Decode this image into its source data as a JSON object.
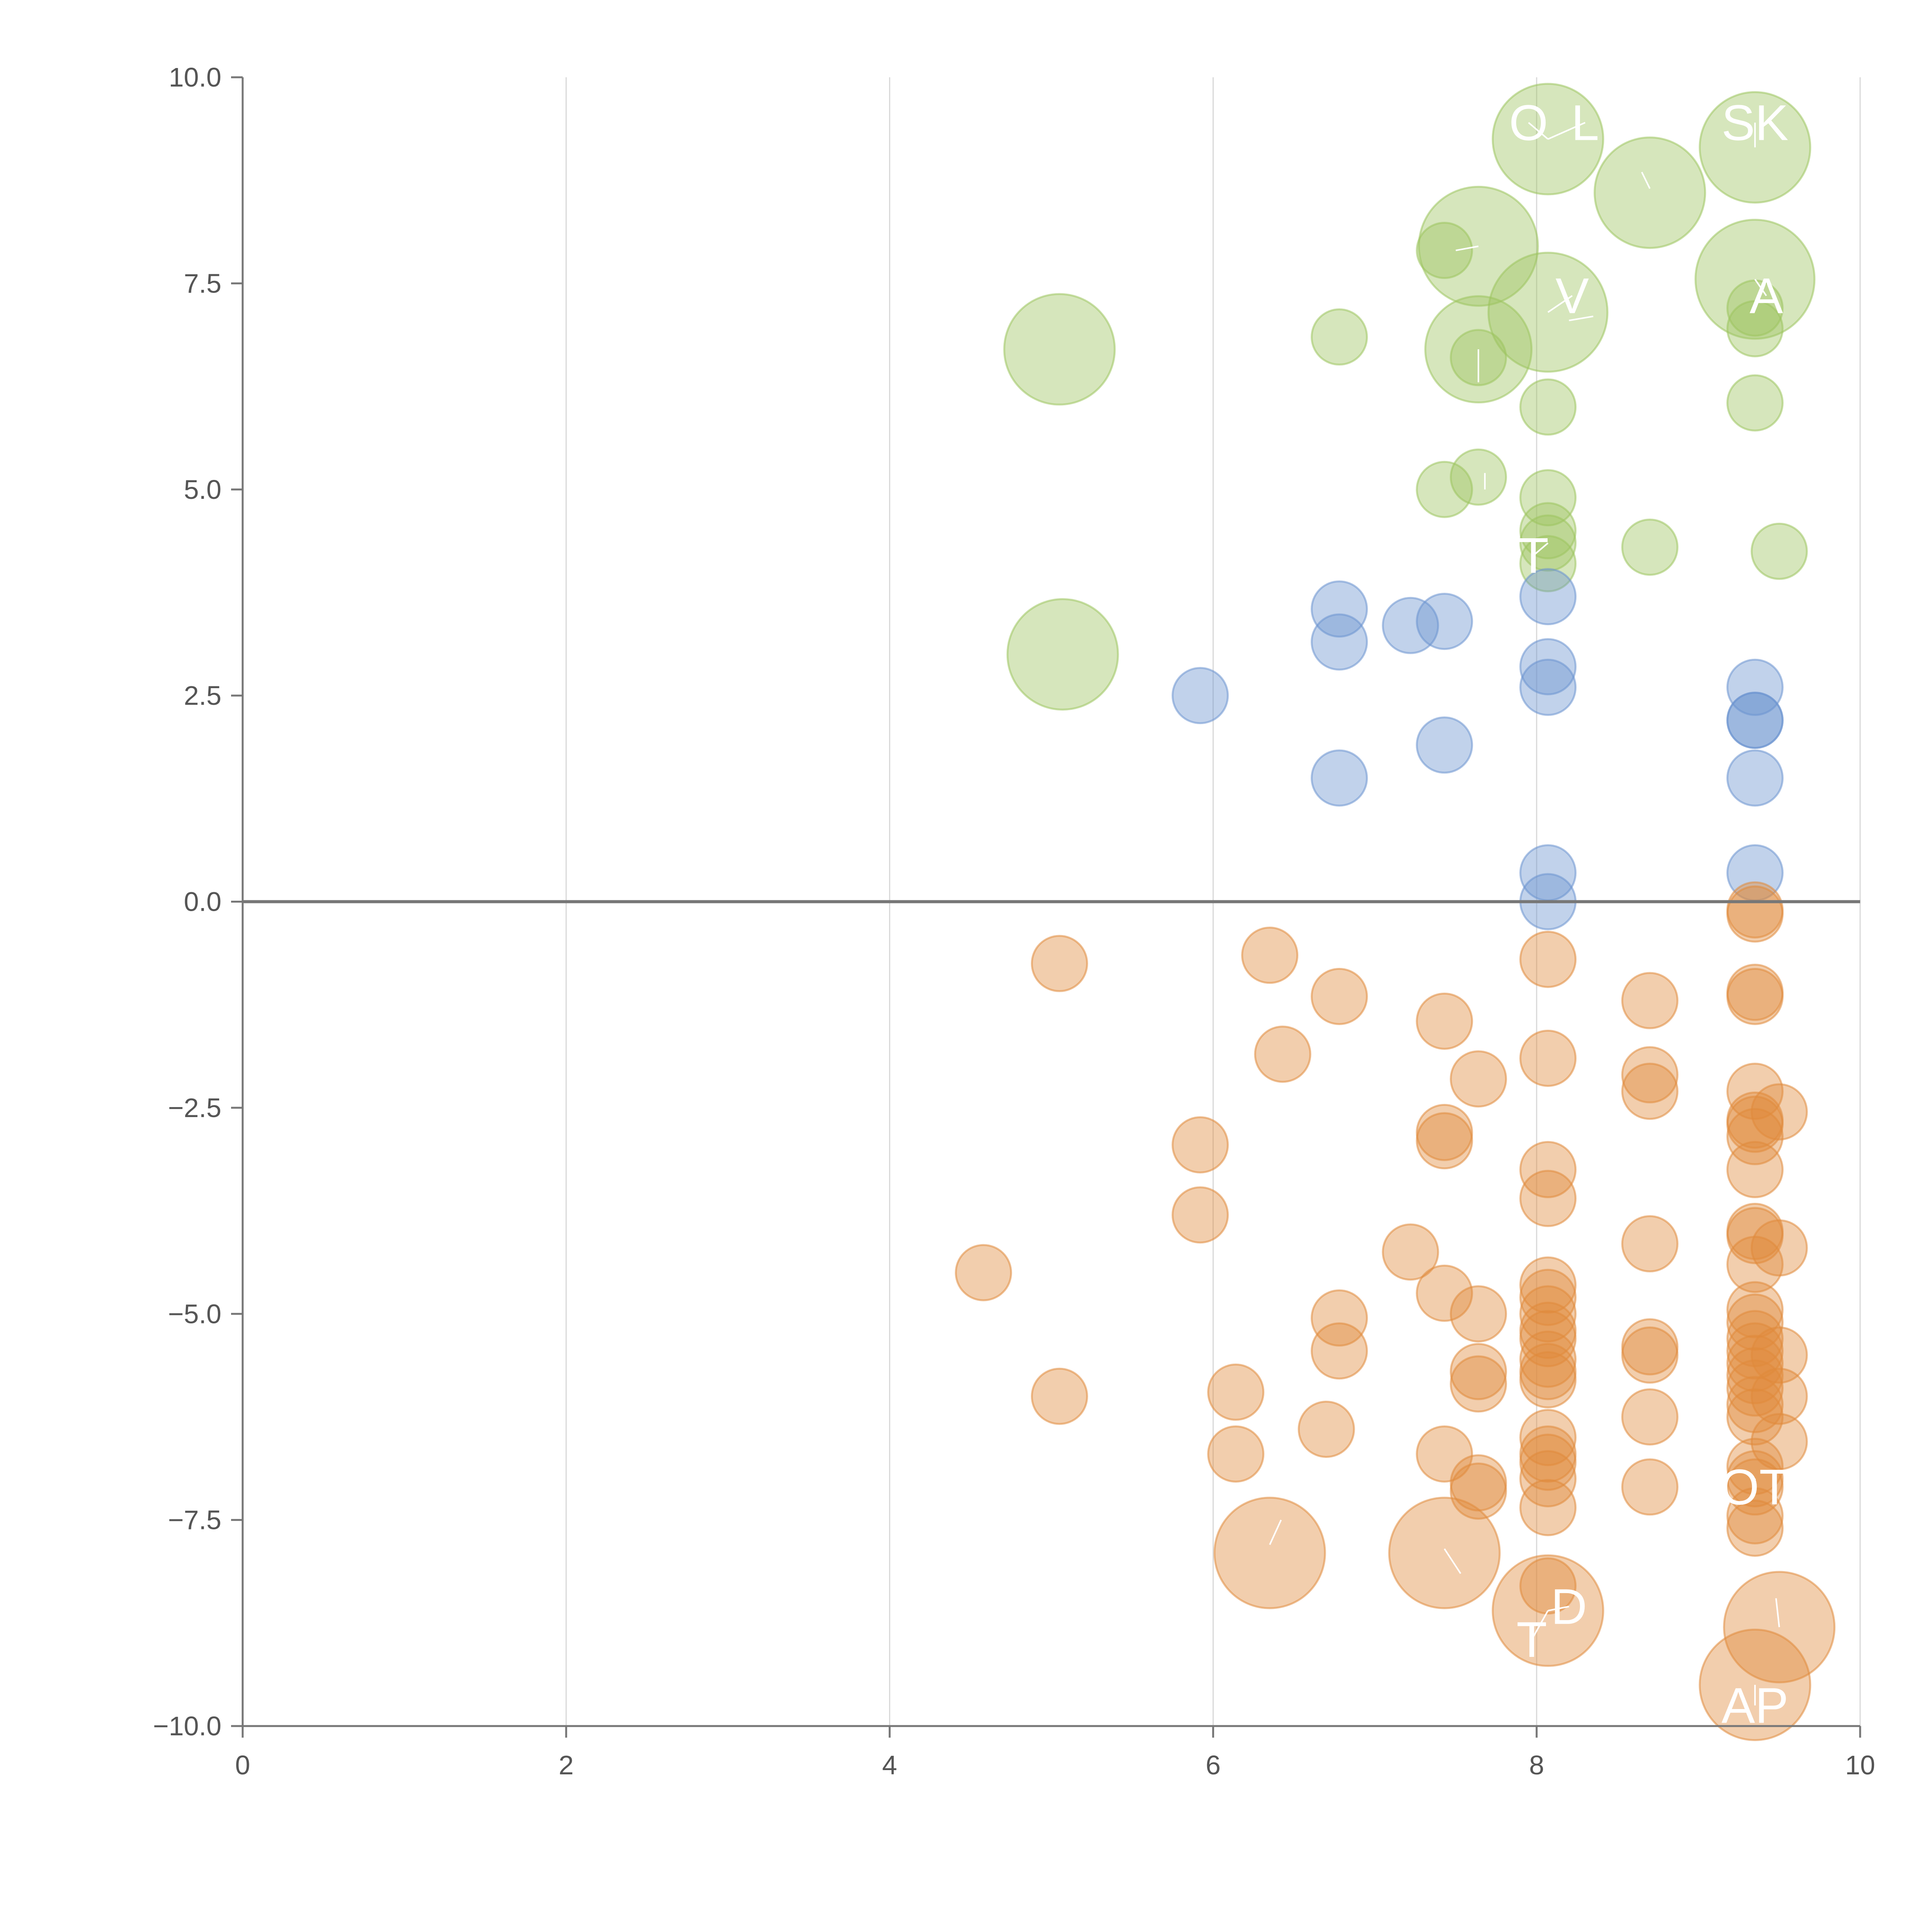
{
  "chart_data": {
    "type": "scatter",
    "title": "",
    "xlabel": "",
    "ylabel": "",
    "xlim": [
      0,
      10
    ],
    "ylim": [
      -10,
      10
    ],
    "x_ticks": [
      0,
      2,
      4,
      6,
      8,
      10
    ],
    "x_tick_labels": [
      "0",
      "2",
      "4",
      "6",
      "8",
      "10"
    ],
    "y_ticks": [
      10,
      7.5,
      5,
      2.5,
      0,
      -2.5,
      -5,
      -7.5,
      -10
    ],
    "y_tick_labels": [
      "10.0",
      "7.5",
      "5.0",
      "2.5",
      "0.0",
      "−2.5",
      "−5.0",
      "−7.5",
      "−10.0"
    ],
    "grid": "vertical",
    "reference_line_y": 0,
    "series": [
      {
        "name": "green",
        "color": "#9dc45f",
        "points": [
          [
            8.07,
            9.25,
            1.3
          ],
          [
            9.35,
            9.15,
            1.3
          ],
          [
            8.7,
            8.6,
            1.3
          ],
          [
            7.64,
            7.95,
            1.4
          ],
          [
            7.43,
            7.9,
            0.65
          ],
          [
            9.35,
            7.55,
            1.4
          ],
          [
            8.07,
            7.15,
            1.4
          ],
          [
            9.35,
            7.2,
            0.65
          ],
          [
            5.05,
            6.7,
            1.3
          ],
          [
            6.78,
            6.85,
            0.65
          ],
          [
            7.64,
            6.7,
            1.25
          ],
          [
            7.64,
            6.6,
            0.65
          ],
          [
            9.35,
            6.95,
            0.65
          ],
          [
            8.07,
            6.0,
            0.65
          ],
          [
            9.35,
            6.05,
            0.65
          ],
          [
            7.64,
            5.15,
            0.65
          ],
          [
            7.43,
            5.0,
            0.65
          ],
          [
            8.07,
            4.9,
            0.65
          ],
          [
            8.07,
            4.5,
            0.65
          ],
          [
            8.07,
            4.35,
            0.65
          ],
          [
            8.07,
            4.1,
            0.65
          ],
          [
            8.7,
            4.3,
            0.65
          ],
          [
            9.5,
            4.25,
            0.65
          ],
          [
            5.07,
            3.0,
            1.3
          ]
        ]
      },
      {
        "name": "blue",
        "color": "#6b93cf",
        "points": [
          [
            6.78,
            3.55,
            0.65
          ],
          [
            6.78,
            3.15,
            0.65
          ],
          [
            7.22,
            3.35,
            0.65
          ],
          [
            7.43,
            3.4,
            0.65
          ],
          [
            8.07,
            3.7,
            0.65
          ],
          [
            8.07,
            2.85,
            0.65
          ],
          [
            8.07,
            2.6,
            0.65
          ],
          [
            9.35,
            2.6,
            0.65
          ],
          [
            9.35,
            2.2,
            0.65
          ],
          [
            9.35,
            2.2,
            0.65
          ],
          [
            5.92,
            2.5,
            0.65
          ],
          [
            7.43,
            1.9,
            0.65
          ],
          [
            6.78,
            1.5,
            0.65
          ],
          [
            9.35,
            1.5,
            0.65
          ],
          [
            8.07,
            0.35,
            0.65
          ],
          [
            9.35,
            0.35,
            0.65
          ],
          [
            8.07,
            0.0,
            0.65
          ]
        ]
      },
      {
        "name": "orange",
        "color": "#e08a3c",
        "points": [
          [
            9.35,
            -0.1,
            0.65
          ],
          [
            9.35,
            -0.15,
            0.65
          ],
          [
            5.05,
            -0.75,
            0.65
          ],
          [
            6.35,
            -0.65,
            0.65
          ],
          [
            8.07,
            -0.7,
            0.65
          ],
          [
            6.78,
            -1.15,
            0.65
          ],
          [
            8.7,
            -1.2,
            0.65
          ],
          [
            9.35,
            -1.1,
            0.65
          ],
          [
            9.35,
            -1.15,
            0.65
          ],
          [
            7.43,
            -1.45,
            0.65
          ],
          [
            6.43,
            -1.85,
            0.65
          ],
          [
            8.07,
            -1.9,
            0.65
          ],
          [
            7.64,
            -2.15,
            0.65
          ],
          [
            8.7,
            -2.1,
            0.65
          ],
          [
            8.7,
            -2.3,
            0.65
          ],
          [
            9.35,
            -2.3,
            0.65
          ],
          [
            9.5,
            -2.55,
            0.65
          ],
          [
            9.35,
            -2.65,
            0.65
          ],
          [
            9.35,
            -2.7,
            0.65
          ],
          [
            9.35,
            -2.85,
            0.65
          ],
          [
            7.43,
            -2.8,
            0.65
          ],
          [
            7.43,
            -2.9,
            0.65
          ],
          [
            5.92,
            -2.95,
            0.65
          ],
          [
            8.07,
            -3.25,
            0.65
          ],
          [
            9.35,
            -3.25,
            0.65
          ],
          [
            8.07,
            -3.6,
            0.65
          ],
          [
            5.92,
            -3.8,
            0.65
          ],
          [
            9.35,
            -4.0,
            0.65
          ],
          [
            9.35,
            -4.05,
            0.65
          ],
          [
            8.7,
            -4.15,
            0.65
          ],
          [
            9.5,
            -4.2,
            0.65
          ],
          [
            7.22,
            -4.25,
            0.65
          ],
          [
            9.35,
            -4.4,
            0.65
          ],
          [
            4.58,
            -4.5,
            0.65
          ],
          [
            8.07,
            -4.65,
            0.65
          ],
          [
            8.07,
            -4.8,
            0.65
          ],
          [
            7.43,
            -4.75,
            0.65
          ],
          [
            9.35,
            -4.95,
            0.65
          ],
          [
            8.07,
            -5.0,
            0.65
          ],
          [
            7.64,
            -5.0,
            0.65
          ],
          [
            9.35,
            -5.1,
            0.65
          ],
          [
            6.78,
            -5.05,
            0.65
          ],
          [
            8.07,
            -5.2,
            0.65
          ],
          [
            8.07,
            -5.3,
            0.65
          ],
          [
            9.35,
            -5.3,
            0.65
          ],
          [
            9.35,
            -5.45,
            0.65
          ],
          [
            8.7,
            -5.4,
            0.65
          ],
          [
            8.7,
            -5.5,
            0.65
          ],
          [
            6.78,
            -5.45,
            0.65
          ],
          [
            9.5,
            -5.5,
            0.65
          ],
          [
            8.07,
            -5.55,
            0.65
          ],
          [
            9.35,
            -5.6,
            0.65
          ],
          [
            8.07,
            -5.7,
            0.65
          ],
          [
            7.64,
            -5.7,
            0.65
          ],
          [
            9.35,
            -5.75,
            0.65
          ],
          [
            8.07,
            -5.8,
            0.65
          ],
          [
            7.64,
            -5.85,
            0.65
          ],
          [
            9.35,
            -5.9,
            0.65
          ],
          [
            6.14,
            -5.95,
            0.65
          ],
          [
            5.05,
            -6.0,
            0.65
          ],
          [
            9.5,
            -6.0,
            0.65
          ],
          [
            9.35,
            -6.1,
            0.65
          ],
          [
            9.35,
            -6.25,
            0.65
          ],
          [
            8.7,
            -6.25,
            0.65
          ],
          [
            6.7,
            -6.4,
            0.65
          ],
          [
            8.07,
            -6.5,
            0.65
          ],
          [
            9.5,
            -6.55,
            0.65
          ],
          [
            8.07,
            -6.7,
            0.65
          ],
          [
            6.14,
            -6.7,
            0.65
          ],
          [
            7.43,
            -6.7,
            0.65
          ],
          [
            8.07,
            -6.8,
            0.65
          ],
          [
            9.35,
            -6.85,
            0.65
          ],
          [
            8.07,
            -7.0,
            0.65
          ],
          [
            9.35,
            -7.0,
            0.65
          ],
          [
            7.64,
            -7.05,
            0.65
          ],
          [
            7.64,
            -7.15,
            0.65
          ],
          [
            8.7,
            -7.1,
            0.65
          ],
          [
            9.35,
            -7.1,
            0.65
          ],
          [
            8.07,
            -7.35,
            0.65
          ],
          [
            9.35,
            -7.45,
            0.65
          ],
          [
            9.35,
            -7.6,
            0.65
          ],
          [
            6.35,
            -7.9,
            1.3
          ],
          [
            7.43,
            -7.9,
            1.3
          ],
          [
            8.07,
            -8.3,
            0.65
          ],
          [
            8.07,
            -8.6,
            1.3
          ],
          [
            9.5,
            -8.8,
            1.3
          ],
          [
            9.35,
            -9.5,
            1.3
          ]
        ]
      }
    ],
    "labels": [
      {
        "text": "O",
        "x": 7.95,
        "y": 9.45,
        "lx": 8.07,
        "ly": 9.25
      },
      {
        "text": "L",
        "x": 8.3,
        "y": 9.45,
        "lx": 8.07,
        "ly": 9.25
      },
      {
        "text": "SK",
        "x": 9.35,
        "y": 9.45,
        "lx": 9.35,
        "ly": 9.15
      },
      {
        "text": "V",
        "x": 8.22,
        "y": 7.35,
        "lx": 8.07,
        "ly": 7.15
      },
      {
        "text": "A",
        "x": 9.42,
        "y": 7.35,
        "lx": 9.35,
        "ly": 7.55
      },
      {
        "text": "T",
        "x": 7.98,
        "y": 4.2,
        "lx": 8.07,
        "ly": 4.35
      },
      {
        "text": "OT",
        "x": 9.35,
        "y": -7.1,
        "lx": 9.35,
        "ly": -7.0
      },
      {
        "text": "D",
        "x": 8.2,
        "y": -8.55,
        "lx": 8.07,
        "ly": -8.6
      },
      {
        "text": "T",
        "x": 7.97,
        "y": -8.95,
        "lx": 8.07,
        "ly": -8.6
      },
      {
        "text": "AP",
        "x": 9.35,
        "y": -9.75,
        "lx": 9.35,
        "ly": -9.5
      }
    ],
    "leaders": [
      [
        7.5,
        7.9,
        7.64,
        7.95
      ],
      [
        8.7,
        8.65,
        8.65,
        8.85
      ],
      [
        8.2,
        7.05,
        8.35,
        7.1
      ],
      [
        7.64,
        6.7,
        7.64,
        6.3
      ],
      [
        7.68,
        5.2,
        7.68,
        5.0
      ],
      [
        6.35,
        -7.8,
        6.42,
        -7.5
      ],
      [
        7.43,
        -7.85,
        7.53,
        -8.15
      ],
      [
        9.5,
        -8.8,
        9.48,
        -8.45
      ]
    ]
  }
}
